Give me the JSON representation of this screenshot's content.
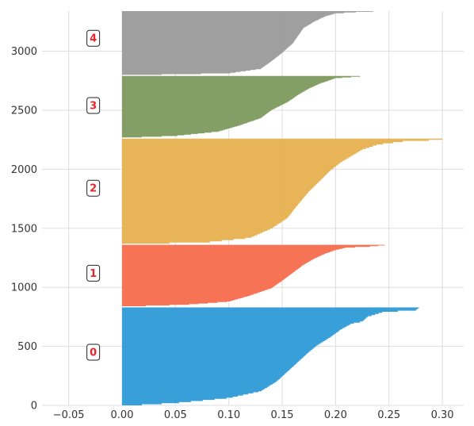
{
  "chart_data": {
    "type": "area",
    "orientation": "horizontal",
    "title": "",
    "xlabel": "",
    "ylabel": "",
    "xlim": [
      -0.075,
      0.32
    ],
    "ylim": [
      0,
      3340
    ],
    "grid": true,
    "x_ticks": [
      -0.05,
      0.0,
      0.05,
      0.1,
      0.15,
      0.2,
      0.25,
      0.3
    ],
    "x_tick_labels": [
      "−0.05",
      "0.00",
      "0.05",
      "0.10",
      "0.15",
      "0.20",
      "0.25",
      "0.30"
    ],
    "y_ticks": [
      0,
      500,
      1000,
      1500,
      2000,
      2500,
      3000
    ],
    "y_tick_labels": [
      "0",
      "500",
      "1000",
      "1500",
      "2000",
      "2500",
      "3000"
    ],
    "label_x": -0.027,
    "series": [
      {
        "label": "0",
        "color": "#2e9ad6",
        "y0": 0,
        "y1": 830,
        "label_y": 450,
        "profile": [
          [
            0,
            0.0
          ],
          [
            0.03,
            0.05
          ],
          [
            0.08,
            0.1
          ],
          [
            0.15,
            0.13
          ],
          [
            0.25,
            0.145
          ],
          [
            0.35,
            0.155
          ],
          [
            0.45,
            0.165
          ],
          [
            0.55,
            0.175
          ],
          [
            0.62,
            0.183
          ],
          [
            0.7,
            0.195
          ],
          [
            0.78,
            0.205
          ],
          [
            0.84,
            0.215
          ],
          [
            0.86,
            0.225
          ],
          [
            0.91,
            0.23
          ],
          [
            0.96,
            0.245
          ],
          [
            0.975,
            0.275
          ],
          [
            1.0,
            0.278
          ]
        ]
      },
      {
        "label": "1",
        "color": "#f56c4c",
        "y0": 840,
        "y1": 1360,
        "label_y": 1120,
        "profile": [
          [
            0,
            0.0
          ],
          [
            0.03,
            0.06
          ],
          [
            0.08,
            0.1
          ],
          [
            0.18,
            0.12
          ],
          [
            0.3,
            0.14
          ],
          [
            0.42,
            0.15
          ],
          [
            0.55,
            0.16
          ],
          [
            0.68,
            0.17
          ],
          [
            0.78,
            0.18
          ],
          [
            0.86,
            0.19
          ],
          [
            0.92,
            0.2
          ],
          [
            0.96,
            0.21
          ],
          [
            0.98,
            0.235
          ],
          [
            1.0,
            0.246
          ]
        ]
      },
      {
        "label": "2",
        "color": "#e6b14e",
        "y0": 1370,
        "y1": 2260,
        "label_y": 1840,
        "profile": [
          [
            0,
            0.0
          ],
          [
            0.02,
            0.08
          ],
          [
            0.06,
            0.12
          ],
          [
            0.15,
            0.14
          ],
          [
            0.25,
            0.155
          ],
          [
            0.38,
            0.165
          ],
          [
            0.5,
            0.175
          ],
          [
            0.6,
            0.185
          ],
          [
            0.7,
            0.195
          ],
          [
            0.78,
            0.205
          ],
          [
            0.84,
            0.215
          ],
          [
            0.9,
            0.225
          ],
          [
            0.95,
            0.24
          ],
          [
            0.98,
            0.265
          ],
          [
            0.99,
            0.29
          ],
          [
            1.0,
            0.3
          ]
        ]
      },
      {
        "label": "3",
        "color": "#7c9a5e",
        "y0": 2270,
        "y1": 2790,
        "label_y": 2540,
        "profile": [
          [
            0,
            0.0
          ],
          [
            0.03,
            0.05
          ],
          [
            0.1,
            0.09
          ],
          [
            0.2,
            0.11
          ],
          [
            0.32,
            0.13
          ],
          [
            0.45,
            0.14
          ],
          [
            0.58,
            0.155
          ],
          [
            0.7,
            0.165
          ],
          [
            0.8,
            0.175
          ],
          [
            0.88,
            0.185
          ],
          [
            0.94,
            0.195
          ],
          [
            0.97,
            0.2
          ],
          [
            1.0,
            0.223
          ]
        ]
      },
      {
        "label": "4",
        "color": "#9a9a9a",
        "y0": 2800,
        "y1": 3340,
        "label_y": 3110,
        "profile": [
          [
            0,
            0.0
          ],
          [
            0.03,
            0.1
          ],
          [
            0.1,
            0.13
          ],
          [
            0.22,
            0.14
          ],
          [
            0.35,
            0.15
          ],
          [
            0.5,
            0.16
          ],
          [
            0.62,
            0.165
          ],
          [
            0.74,
            0.17
          ],
          [
            0.84,
            0.18
          ],
          [
            0.92,
            0.19
          ],
          [
            0.97,
            0.2
          ],
          [
            0.99,
            0.22
          ],
          [
            1.0,
            0.235
          ]
        ]
      }
    ]
  }
}
